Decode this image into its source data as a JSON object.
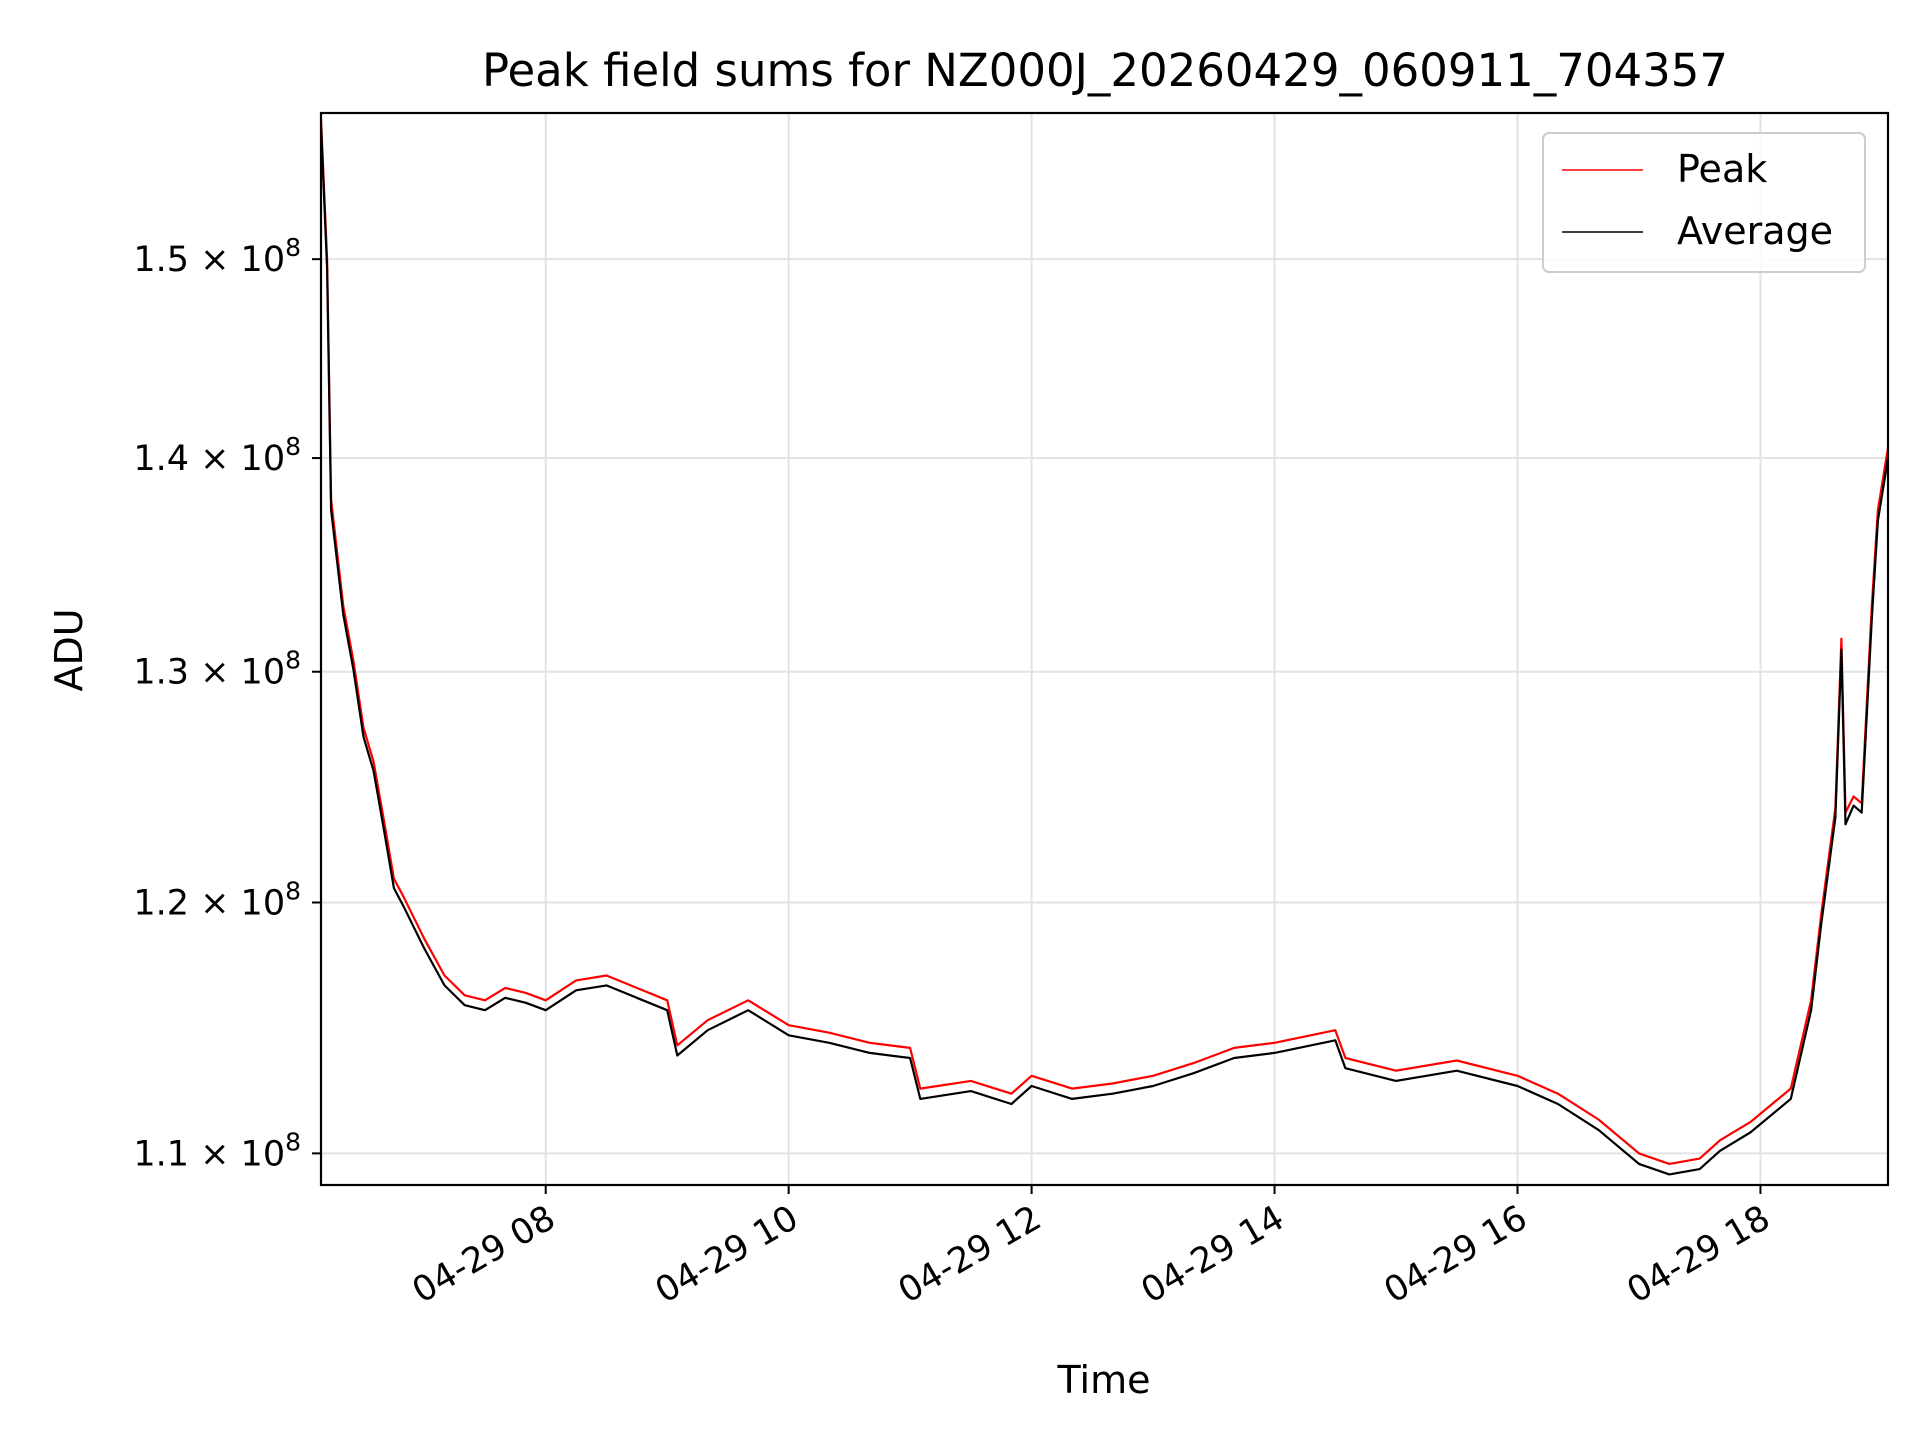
{
  "chart_data": {
    "type": "line",
    "title": "Peak field sums for NZ000J_20260429_060911_704357",
    "xlabel": "Time",
    "ylabel": "ADU",
    "yscale": "log",
    "xlim": [
      "2026-04-29 06:09",
      "2026-04-29 19:03"
    ],
    "ylim": [
      108800000,
      157800000
    ],
    "grid": true,
    "legend_position": "top-right",
    "x_ticks": [
      {
        "value": "2026-04-29 08:00",
        "label": "04-29 08"
      },
      {
        "value": "2026-04-29 10:00",
        "label": "04-29 10"
      },
      {
        "value": "2026-04-29 12:00",
        "label": "04-29 12"
      },
      {
        "value": "2026-04-29 14:00",
        "label": "04-29 14"
      },
      {
        "value": "2026-04-29 16:00",
        "label": "04-29 16"
      },
      {
        "value": "2026-04-29 18:00",
        "label": "04-29 18"
      }
    ],
    "y_ticks": [
      {
        "value": 110000000,
        "mantissa": "1.1",
        "exponent": "8"
      },
      {
        "value": 120000000,
        "mantissa": "1.2",
        "exponent": "8"
      },
      {
        "value": 130000000,
        "mantissa": "1.3",
        "exponent": "8"
      },
      {
        "value": 140000000,
        "mantissa": "1.4",
        "exponent": "8"
      },
      {
        "value": 150000000,
        "mantissa": "1.5",
        "exponent": "8"
      }
    ],
    "series": [
      {
        "name": "Peak",
        "color": "#ff0000",
        "points": [
          [
            "2026-04-29 06:09",
            157500000
          ],
          [
            "2026-04-29 06:12",
            150000000
          ],
          [
            "2026-04-29 06:14",
            138000000
          ],
          [
            "2026-04-29 06:20",
            133000000
          ],
          [
            "2026-04-29 06:25",
            130500000
          ],
          [
            "2026-04-29 06:30",
            127500000
          ],
          [
            "2026-04-29 06:35",
            126000000
          ],
          [
            "2026-04-29 06:40",
            123500000
          ],
          [
            "2026-04-29 06:45",
            121000000
          ],
          [
            "2026-04-29 06:50",
            120200000
          ],
          [
            "2026-04-29 07:00",
            118500000
          ],
          [
            "2026-04-29 07:10",
            117000000
          ],
          [
            "2026-04-29 07:20",
            116200000
          ],
          [
            "2026-04-29 07:30",
            116000000
          ],
          [
            "2026-04-29 07:40",
            116500000
          ],
          [
            "2026-04-29 07:50",
            116300000
          ],
          [
            "2026-04-29 08:00",
            116000000
          ],
          [
            "2026-04-29 08:15",
            116800000
          ],
          [
            "2026-04-29 08:30",
            117000000
          ],
          [
            "2026-04-29 08:45",
            116500000
          ],
          [
            "2026-04-29 09:00",
            116000000
          ],
          [
            "2026-04-29 09:05",
            114200000
          ],
          [
            "2026-04-29 09:20",
            115200000
          ],
          [
            "2026-04-29 09:40",
            116000000
          ],
          [
            "2026-04-29 10:00",
            115000000
          ],
          [
            "2026-04-29 10:20",
            114700000
          ],
          [
            "2026-04-29 10:40",
            114300000
          ],
          [
            "2026-04-29 11:00",
            114100000
          ],
          [
            "2026-04-29 11:05",
            112500000
          ],
          [
            "2026-04-29 11:30",
            112800000
          ],
          [
            "2026-04-29 11:50",
            112300000
          ],
          [
            "2026-04-29 12:00",
            113000000
          ],
          [
            "2026-04-29 12:20",
            112500000
          ],
          [
            "2026-04-29 12:40",
            112700000
          ],
          [
            "2026-04-29 13:00",
            113000000
          ],
          [
            "2026-04-29 13:20",
            113500000
          ],
          [
            "2026-04-29 13:40",
            114100000
          ],
          [
            "2026-04-29 14:00",
            114300000
          ],
          [
            "2026-04-29 14:30",
            114800000
          ],
          [
            "2026-04-29 14:35",
            113700000
          ],
          [
            "2026-04-29 15:00",
            113200000
          ],
          [
            "2026-04-29 15:30",
            113600000
          ],
          [
            "2026-04-29 16:00",
            113000000
          ],
          [
            "2026-04-29 16:20",
            112300000
          ],
          [
            "2026-04-29 16:40",
            111300000
          ],
          [
            "2026-04-29 17:00",
            110000000
          ],
          [
            "2026-04-29 17:15",
            109600000
          ],
          [
            "2026-04-29 17:30",
            109800000
          ],
          [
            "2026-04-29 17:40",
            110500000
          ],
          [
            "2026-04-29 17:55",
            111200000
          ],
          [
            "2026-04-29 18:15",
            112500000
          ],
          [
            "2026-04-29 18:25",
            116000000
          ],
          [
            "2026-04-29 18:30",
            119500000
          ],
          [
            "2026-04-29 18:37",
            124000000
          ],
          [
            "2026-04-29 18:40",
            131500000
          ],
          [
            "2026-04-29 18:42",
            123800000
          ],
          [
            "2026-04-29 18:46",
            124500000
          ],
          [
            "2026-04-29 18:50",
            124200000
          ],
          [
            "2026-04-29 18:55",
            133000000
          ],
          [
            "2026-04-29 18:58",
            137500000
          ],
          [
            "2026-04-29 19:03",
            140500000
          ]
        ]
      },
      {
        "name": "Average",
        "color": "#000000",
        "points": [
          [
            "2026-04-29 06:09",
            157200000
          ],
          [
            "2026-04-29 06:12",
            149500000
          ],
          [
            "2026-04-29 06:14",
            137500000
          ],
          [
            "2026-04-29 06:20",
            132600000
          ],
          [
            "2026-04-29 06:25",
            130100000
          ],
          [
            "2026-04-29 06:30",
            127100000
          ],
          [
            "2026-04-29 06:35",
            125600000
          ],
          [
            "2026-04-29 06:40",
            123100000
          ],
          [
            "2026-04-29 06:45",
            120600000
          ],
          [
            "2026-04-29 06:50",
            119800000
          ],
          [
            "2026-04-29 07:00",
            118100000
          ],
          [
            "2026-04-29 07:10",
            116600000
          ],
          [
            "2026-04-29 07:20",
            115800000
          ],
          [
            "2026-04-29 07:30",
            115600000
          ],
          [
            "2026-04-29 07:40",
            116100000
          ],
          [
            "2026-04-29 07:50",
            115900000
          ],
          [
            "2026-04-29 08:00",
            115600000
          ],
          [
            "2026-04-29 08:15",
            116400000
          ],
          [
            "2026-04-29 08:30",
            116600000
          ],
          [
            "2026-04-29 08:45",
            116100000
          ],
          [
            "2026-04-29 09:00",
            115600000
          ],
          [
            "2026-04-29 09:05",
            113800000
          ],
          [
            "2026-04-29 09:20",
            114800000
          ],
          [
            "2026-04-29 09:40",
            115600000
          ],
          [
            "2026-04-29 10:00",
            114600000
          ],
          [
            "2026-04-29 10:20",
            114300000
          ],
          [
            "2026-04-29 10:40",
            113900000
          ],
          [
            "2026-04-29 11:00",
            113700000
          ],
          [
            "2026-04-29 11:05",
            112100000
          ],
          [
            "2026-04-29 11:30",
            112400000
          ],
          [
            "2026-04-29 11:50",
            111900000
          ],
          [
            "2026-04-29 12:00",
            112600000
          ],
          [
            "2026-04-29 12:20",
            112100000
          ],
          [
            "2026-04-29 12:40",
            112300000
          ],
          [
            "2026-04-29 13:00",
            112600000
          ],
          [
            "2026-04-29 13:20",
            113100000
          ],
          [
            "2026-04-29 13:40",
            113700000
          ],
          [
            "2026-04-29 14:00",
            113900000
          ],
          [
            "2026-04-29 14:30",
            114400000
          ],
          [
            "2026-04-29 14:35",
            113300000
          ],
          [
            "2026-04-29 15:00",
            112800000
          ],
          [
            "2026-04-29 15:30",
            113200000
          ],
          [
            "2026-04-29 16:00",
            112600000
          ],
          [
            "2026-04-29 16:20",
            111900000
          ],
          [
            "2026-04-29 16:40",
            110900000
          ],
          [
            "2026-04-29 17:00",
            109600000
          ],
          [
            "2026-04-29 17:15",
            109200000
          ],
          [
            "2026-04-29 17:30",
            109400000
          ],
          [
            "2026-04-29 17:40",
            110100000
          ],
          [
            "2026-04-29 17:55",
            110800000
          ],
          [
            "2026-04-29 18:15",
            112100000
          ],
          [
            "2026-04-29 18:25",
            115600000
          ],
          [
            "2026-04-29 18:30",
            119100000
          ],
          [
            "2026-04-29 18:37",
            123600000
          ],
          [
            "2026-04-29 18:40",
            131000000
          ],
          [
            "2026-04-29 18:42",
            123300000
          ],
          [
            "2026-04-29 18:46",
            124100000
          ],
          [
            "2026-04-29 18:50",
            123800000
          ],
          [
            "2026-04-29 18:55",
            132400000
          ],
          [
            "2026-04-29 18:58",
            137000000
          ],
          [
            "2026-04-29 19:03",
            140000000
          ]
        ]
      }
    ]
  }
}
